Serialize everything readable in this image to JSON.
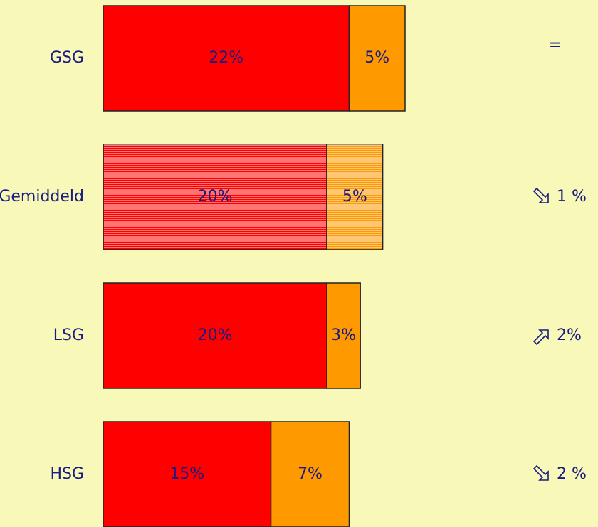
{
  "chart_data": {
    "type": "stacked-bar",
    "categories": [
      "GSG",
      "Gemiddeld",
      "LSG",
      "HSG"
    ],
    "series": [
      {
        "color": "#ff0000",
        "values": [
          22,
          20,
          20,
          15
        ],
        "value_labels": [
          "22%",
          "20%",
          "20%",
          "15%"
        ]
      },
      {
        "color": "#ff9900",
        "values": [
          5,
          5,
          3,
          7
        ],
        "value_labels": [
          "5%",
          "5%",
          "3%",
          "7%"
        ]
      }
    ],
    "hatched": [
      false,
      true,
      false,
      false
    ],
    "changes": [
      {
        "label": "="
      },
      {
        "label": "1 %",
        "direction": "down"
      },
      {
        "label": "2%",
        "direction": "up"
      },
      {
        "label": "2 %",
        "direction": "down"
      }
    ]
  }
}
